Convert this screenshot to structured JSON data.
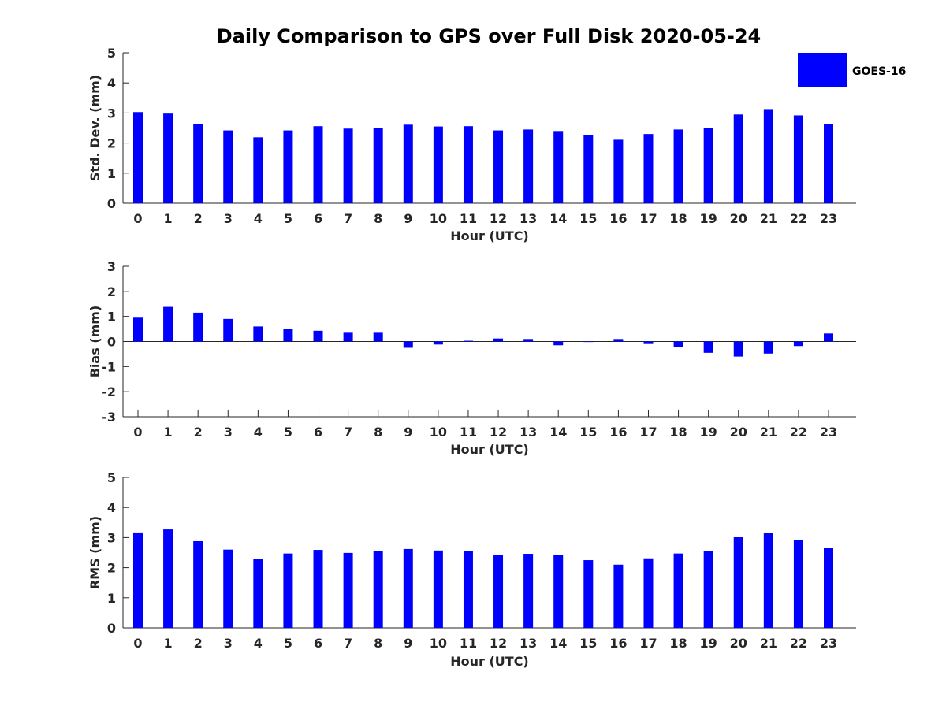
{
  "chart_data": {
    "title": "Daily Comparison to GPS over Full Disk 2020-05-24",
    "legend": {
      "label": "GOES-16",
      "color": "#0000ff",
      "placement": "top-right"
    },
    "categories": [
      "0",
      "1",
      "2",
      "3",
      "4",
      "5",
      "6",
      "7",
      "8",
      "9",
      "10",
      "11",
      "12",
      "13",
      "14",
      "15",
      "16",
      "17",
      "18",
      "19",
      "20",
      "21",
      "22",
      "23"
    ],
    "panels": [
      {
        "type": "bar",
        "ylabel": "Std. Dev. (mm)",
        "xlabel": "Hour (UTC)",
        "ylim": [
          0,
          5
        ],
        "yticks": [
          "0",
          "1",
          "2",
          "3",
          "4",
          "5"
        ],
        "series": [
          {
            "name": "GOES-16",
            "values": [
              3.03,
              2.98,
              2.63,
              2.42,
              2.19,
              2.42,
              2.56,
              2.48,
              2.51,
              2.61,
              2.55,
              2.56,
              2.42,
              2.45,
              2.4,
              2.27,
              2.11,
              2.3,
              2.45,
              2.51,
              2.95,
              3.13,
              2.92,
              2.64
            ]
          }
        ]
      },
      {
        "type": "bar",
        "ylabel": "Bias (mm)",
        "xlabel": "Hour (UTC)",
        "ylim": [
          -3,
          3
        ],
        "yticks": [
          "-3",
          "-2",
          "-1",
          "0",
          "1",
          "2",
          "3"
        ],
        "series": [
          {
            "name": "GOES-16",
            "values": [
              0.95,
              1.38,
              1.15,
              0.9,
              0.6,
              0.5,
              0.43,
              0.35,
              0.35,
              -0.25,
              -0.12,
              0.03,
              0.12,
              0.1,
              -0.15,
              -0.02,
              0.1,
              -0.1,
              -0.22,
              -0.45,
              -0.6,
              -0.48,
              -0.18,
              0.32
            ]
          }
        ]
      },
      {
        "type": "bar",
        "ylabel": "RMS (mm)",
        "xlabel": "Hour (UTC)",
        "ylim": [
          0,
          5
        ],
        "yticks": [
          "0",
          "1",
          "2",
          "3",
          "4",
          "5"
        ],
        "series": [
          {
            "name": "GOES-16",
            "values": [
              3.17,
              3.27,
              2.88,
              2.6,
              2.28,
              2.47,
              2.59,
              2.49,
              2.54,
              2.62,
              2.57,
              2.54,
              2.43,
              2.46,
              2.41,
              2.25,
              2.1,
              2.31,
              2.47,
              2.55,
              3.01,
              3.16,
              2.93,
              2.67
            ]
          }
        ]
      }
    ]
  }
}
